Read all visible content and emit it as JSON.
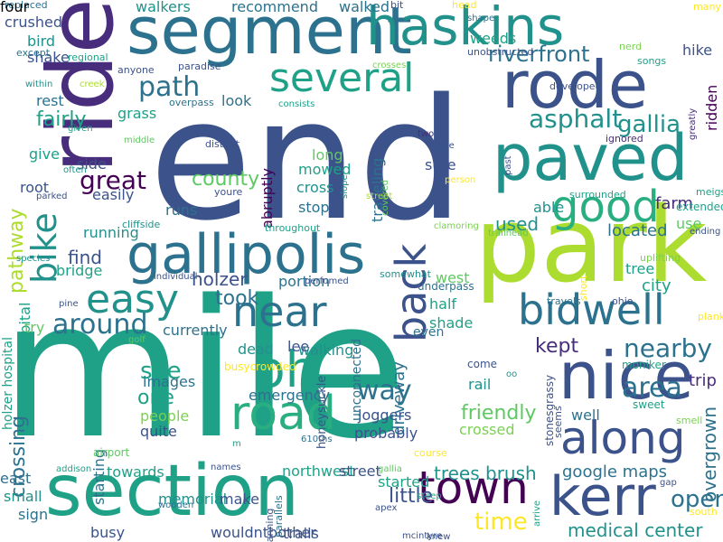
{
  "palette": {
    "dark_purple": "#440154",
    "indigo": "#472d7b",
    "blue_purple": "#3b528b",
    "steel_blue": "#2c728e",
    "teal_blue": "#21918c",
    "teal": "#1fa187",
    "sea_green": "#28ae80",
    "green": "#5ec962",
    "light_green": "#7ad151",
    "yellow_green": "#addc30",
    "yellow": "#fde725"
  },
  "words": [
    {
      "text": "end",
      "color": "blue_purple"
    },
    {
      "text": "mile",
      "color": "teal"
    },
    {
      "text": "park",
      "color": "yellow_green"
    },
    {
      "text": "segment",
      "color": "steel_blue"
    },
    {
      "text": "section",
      "color": "teal"
    },
    {
      "text": "paved",
      "color": "teal_blue"
    },
    {
      "text": "ride",
      "color": "indigo"
    },
    {
      "text": "rode",
      "color": "blue_purple"
    },
    {
      "text": "haskins",
      "color": "teal_blue"
    },
    {
      "text": "nice",
      "color": "blue_purple"
    },
    {
      "text": "gallipolis",
      "color": "steel_blue"
    },
    {
      "text": "kerr",
      "color": "blue_purple"
    },
    {
      "text": "along",
      "color": "blue_purple"
    },
    {
      "text": "road",
      "color": "sea_green"
    },
    {
      "text": "town",
      "color": "dark_purple"
    },
    {
      "text": "oh",
      "color": "teal"
    },
    {
      "text": "bidwell",
      "color": "steel_blue"
    },
    {
      "text": "several",
      "color": "teal"
    },
    {
      "text": "back",
      "color": "blue_purple"
    },
    {
      "text": "near",
      "color": "steel_blue"
    },
    {
      "text": "good",
      "color": "sea_green"
    },
    {
      "text": "easy",
      "color": "teal_blue"
    },
    {
      "text": "bike",
      "color": "teal_blue"
    },
    {
      "text": "path",
      "color": "steel_blue"
    },
    {
      "text": "asphalt",
      "color": "teal_blue"
    },
    {
      "text": "riverfront",
      "color": "steel_blue"
    },
    {
      "text": "gallia",
      "color": "teal_blue"
    },
    {
      "text": "area",
      "color": "steel_blue"
    },
    {
      "text": "nearby",
      "color": "steel_blue"
    },
    {
      "text": "open",
      "color": "steel_blue"
    },
    {
      "text": "around",
      "color": "steel_blue"
    },
    {
      "text": "great",
      "color": "dark_purple"
    },
    {
      "text": "time",
      "color": "yellow"
    },
    {
      "text": "way",
      "color": "steel_blue"
    },
    {
      "text": "kept",
      "color": "indigo"
    },
    {
      "text": "friendly",
      "color": "green"
    },
    {
      "text": "crossing",
      "color": "steel_blue"
    },
    {
      "text": "county",
      "color": "green"
    },
    {
      "text": "fairly",
      "color": "teal"
    },
    {
      "text": "pathway",
      "color": "yellow_green"
    },
    {
      "text": "see",
      "color": "teal"
    },
    {
      "text": "one",
      "color": "teal"
    },
    {
      "text": "little",
      "color": "blue_purple"
    },
    {
      "text": "trees brush",
      "color": "teal_blue"
    },
    {
      "text": "google maps",
      "color": "steel_blue"
    },
    {
      "text": "medical center",
      "color": "teal_blue"
    },
    {
      "text": "took",
      "color": "steel_blue"
    },
    {
      "text": "holzer",
      "color": "blue_purple"
    },
    {
      "text": "find",
      "color": "blue_purple"
    },
    {
      "text": "used",
      "color": "teal_blue"
    },
    {
      "text": "located",
      "color": "steel_blue"
    },
    {
      "text": "city",
      "color": "teal"
    },
    {
      "text": "farm",
      "color": "indigo"
    },
    {
      "text": "overgrown",
      "color": "steel_blue"
    },
    {
      "text": "trip",
      "color": "indigo"
    },
    {
      "text": "well",
      "color": "steel_blue"
    },
    {
      "text": "driveway",
      "color": "steel_blue"
    },
    {
      "text": "joggers",
      "color": "blue_purple"
    },
    {
      "text": "crossed",
      "color": "light_green"
    },
    {
      "text": "probably",
      "color": "blue_purple"
    },
    {
      "text": "rail",
      "color": "teal_blue"
    },
    {
      "text": "half",
      "color": "teal"
    },
    {
      "text": "shade",
      "color": "teal"
    },
    {
      "text": "west",
      "color": "green"
    },
    {
      "text": "tree",
      "color": "teal"
    },
    {
      "text": "hike",
      "color": "blue_purple"
    },
    {
      "text": "ridden",
      "color": "dark_purple"
    },
    {
      "text": "weeds",
      "color": "teal"
    },
    {
      "text": "walkers",
      "color": "teal_blue"
    },
    {
      "text": "recommend",
      "color": "steel_blue"
    },
    {
      "text": "walked",
      "color": "steel_blue"
    },
    {
      "text": "crushed",
      "color": "blue_purple"
    },
    {
      "text": "bird",
      "color": "teal_blue"
    },
    {
      "text": "shake",
      "color": "blue_purple"
    },
    {
      "text": "rest",
      "color": "steel_blue"
    },
    {
      "text": "grass",
      "color": "teal"
    },
    {
      "text": "look",
      "color": "steel_blue"
    },
    {
      "text": "give",
      "color": "teal"
    },
    {
      "text": "root",
      "color": "blue_purple"
    },
    {
      "text": "side",
      "color": "blue_purple"
    },
    {
      "text": "easily",
      "color": "blue_purple"
    },
    {
      "text": "runs",
      "color": "steel_blue"
    },
    {
      "text": "running",
      "color": "teal_blue"
    },
    {
      "text": "bridge",
      "color": "teal"
    },
    {
      "text": "hospital",
      "color": "teal"
    },
    {
      "text": "holzer hospital",
      "color": "teal"
    },
    {
      "text": "portion",
      "color": "steel_blue"
    },
    {
      "text": "walking",
      "color": "teal_blue"
    },
    {
      "text": "long",
      "color": "green"
    },
    {
      "text": "mowed",
      "color": "teal"
    },
    {
      "text": "cross",
      "color": "teal_blue"
    },
    {
      "text": "stop",
      "color": "steel_blue"
    },
    {
      "text": "sure",
      "color": "blue_purple"
    },
    {
      "text": "traveling",
      "color": "steel_blue"
    },
    {
      "text": "abruptly",
      "color": "dark_purple"
    },
    {
      "text": "able",
      "color": "teal_blue"
    },
    {
      "text": "use",
      "color": "green"
    },
    {
      "text": "emergency",
      "color": "steel_blue"
    },
    {
      "text": "images",
      "color": "steel_blue"
    },
    {
      "text": "currently",
      "color": "steel_blue"
    },
    {
      "text": "dead",
      "color": "teal_blue"
    },
    {
      "text": "lee",
      "color": "blue_purple"
    },
    {
      "text": "try",
      "color": "green"
    },
    {
      "text": "quite",
      "color": "blue_purple"
    },
    {
      "text": "people",
      "color": "light_green"
    },
    {
      "text": "starting",
      "color": "steel_blue"
    },
    {
      "text": "towards",
      "color": "teal"
    },
    {
      "text": "east",
      "color": "steel_blue"
    },
    {
      "text": "small",
      "color": "teal_blue"
    },
    {
      "text": "sign",
      "color": "steel_blue"
    },
    {
      "text": "memorial",
      "color": "teal_blue"
    },
    {
      "text": "make",
      "color": "blue_purple"
    },
    {
      "text": "busy",
      "color": "blue_purple"
    },
    {
      "text": "wouldntbother",
      "color": "blue_purple"
    },
    {
      "text": "trails",
      "color": "blue_purple"
    },
    {
      "text": "northwest",
      "color": "teal"
    },
    {
      "text": "street",
      "color": "blue_purple"
    },
    {
      "text": "started",
      "color": "teal"
    },
    {
      "text": "even",
      "color": "steel_blue"
    },
    {
      "text": "unconnected",
      "color": "steel_blue"
    },
    {
      "text": "honeysuckle",
      "color": "blue_purple"
    },
    {
      "text": "busycrowded",
      "color": "yellow"
    },
    {
      "text": "come",
      "color": "blue_purple"
    },
    {
      "text": "seems",
      "color": "blue_purple"
    },
    {
      "text": "moniker",
      "color": "teal"
    },
    {
      "text": "stonesgrassy",
      "color": "blue_purple"
    },
    {
      "text": "sweet",
      "color": "teal"
    },
    {
      "text": "smell",
      "color": "light_green"
    },
    {
      "text": "planking",
      "color": "yellow"
    },
    {
      "text": "ohio",
      "color": "blue_purple"
    },
    {
      "text": "travels",
      "color": "steel_blue"
    },
    {
      "text": "short",
      "color": "yellow"
    },
    {
      "text": "uplifting",
      "color": "light_green"
    },
    {
      "text": "ending",
      "color": "blue_purple"
    },
    {
      "text": "meigs",
      "color": "teal"
    },
    {
      "text": "extended",
      "color": "teal"
    },
    {
      "text": "surrounded",
      "color": "teal"
    },
    {
      "text": "ignored",
      "color": "indigo"
    },
    {
      "text": "greatly",
      "color": "indigo"
    },
    {
      "text": "nerd",
      "color": "light_green"
    },
    {
      "text": "songs",
      "color": "teal"
    },
    {
      "text": "developed",
      "color": "blue_purple"
    },
    {
      "text": "shape",
      "color": "steel_blue"
    },
    {
      "text": "head",
      "color": "yellow"
    },
    {
      "text": "many",
      "color": "yellow"
    },
    {
      "text": "bit",
      "color": "blue_purple"
    },
    {
      "text": "replaced",
      "color": "steel_blue"
    },
    {
      "text": "except",
      "color": "steel_blue"
    },
    {
      "text": "regional",
      "color": "teal"
    },
    {
      "text": "within",
      "color": "teal_blue"
    },
    {
      "text": "creek",
      "color": "yellow_green"
    },
    {
      "text": "given",
      "color": "teal"
    },
    {
      "text": "middle",
      "color": "green"
    },
    {
      "text": "often",
      "color": "teal_blue"
    },
    {
      "text": "parked",
      "color": "blue_purple"
    },
    {
      "text": "species",
      "color": "teal_blue"
    },
    {
      "text": "pine",
      "color": "blue_purple"
    },
    {
      "text": "golf",
      "color": "green"
    },
    {
      "text": "anyone",
      "color": "blue_purple"
    },
    {
      "text": "paradise",
      "color": "blue_purple"
    },
    {
      "text": "overpass",
      "color": "steel_blue"
    },
    {
      "text": "consists",
      "color": "teal"
    },
    {
      "text": "district",
      "color": "blue_purple"
    },
    {
      "text": "youre",
      "color": "blue_purple"
    },
    {
      "text": "slope",
      "color": "teal_blue"
    },
    {
      "text": "covered",
      "color": "green"
    },
    {
      "text": "cliffside",
      "color": "teal_blue"
    },
    {
      "text": "throughout",
      "color": "teal"
    },
    {
      "text": "trailhead",
      "color": "green"
    },
    {
      "text": "clamoring",
      "color": "light_green"
    },
    {
      "text": "individual",
      "color": "blue_purple"
    },
    {
      "text": "somewhat",
      "color": "teal_blue"
    },
    {
      "text": "underpass",
      "color": "steel_blue"
    },
    {
      "text": "perfumed",
      "color": "blue_purple"
    },
    {
      "text": "crosses",
      "color": "light_green"
    },
    {
      "text": "unobstructed",
      "color": "blue_purple"
    },
    {
      "text": "two",
      "color": "indigo"
    },
    {
      "text": "stone",
      "color": "blue_purple"
    },
    {
      "text": "person",
      "color": "yellow"
    },
    {
      "text": "past",
      "color": "blue_purple"
    },
    {
      "text": "airport",
      "color": "green"
    },
    {
      "text": "m",
      "color": "teal"
    },
    {
      "text": "610ths",
      "color": "steel_blue"
    },
    {
      "text": "names",
      "color": "blue_purple"
    },
    {
      "text": "spanning",
      "color": "blue_purple"
    },
    {
      "text": "gallia",
      "color": "green"
    },
    {
      "text": "course",
      "color": "yellow"
    },
    {
      "text": "steep",
      "color": "teal"
    },
    {
      "text": "apex",
      "color": "blue_purple"
    },
    {
      "text": "mcintyre",
      "color": "blue_purple"
    },
    {
      "text": "knew",
      "color": "blue_purple"
    },
    {
      "text": "arrive",
      "color": "teal"
    },
    {
      "text": "gap",
      "color": "blue_purple"
    },
    {
      "text": "south",
      "color": "yellow"
    },
    {
      "text": "wooden",
      "color": "steel_blue"
    },
    {
      "text": "addison",
      "color": "teal"
    },
    {
      "text": "parallels",
      "color": "steel_blue"
    },
    {
      "text": "street",
      "color": "yellow_green"
    },
    {
      "text": "oo",
      "color": "teal_blue"
    },
    {
      "text": "four",
      "color": "blue_purple"
    }
  ]
}
